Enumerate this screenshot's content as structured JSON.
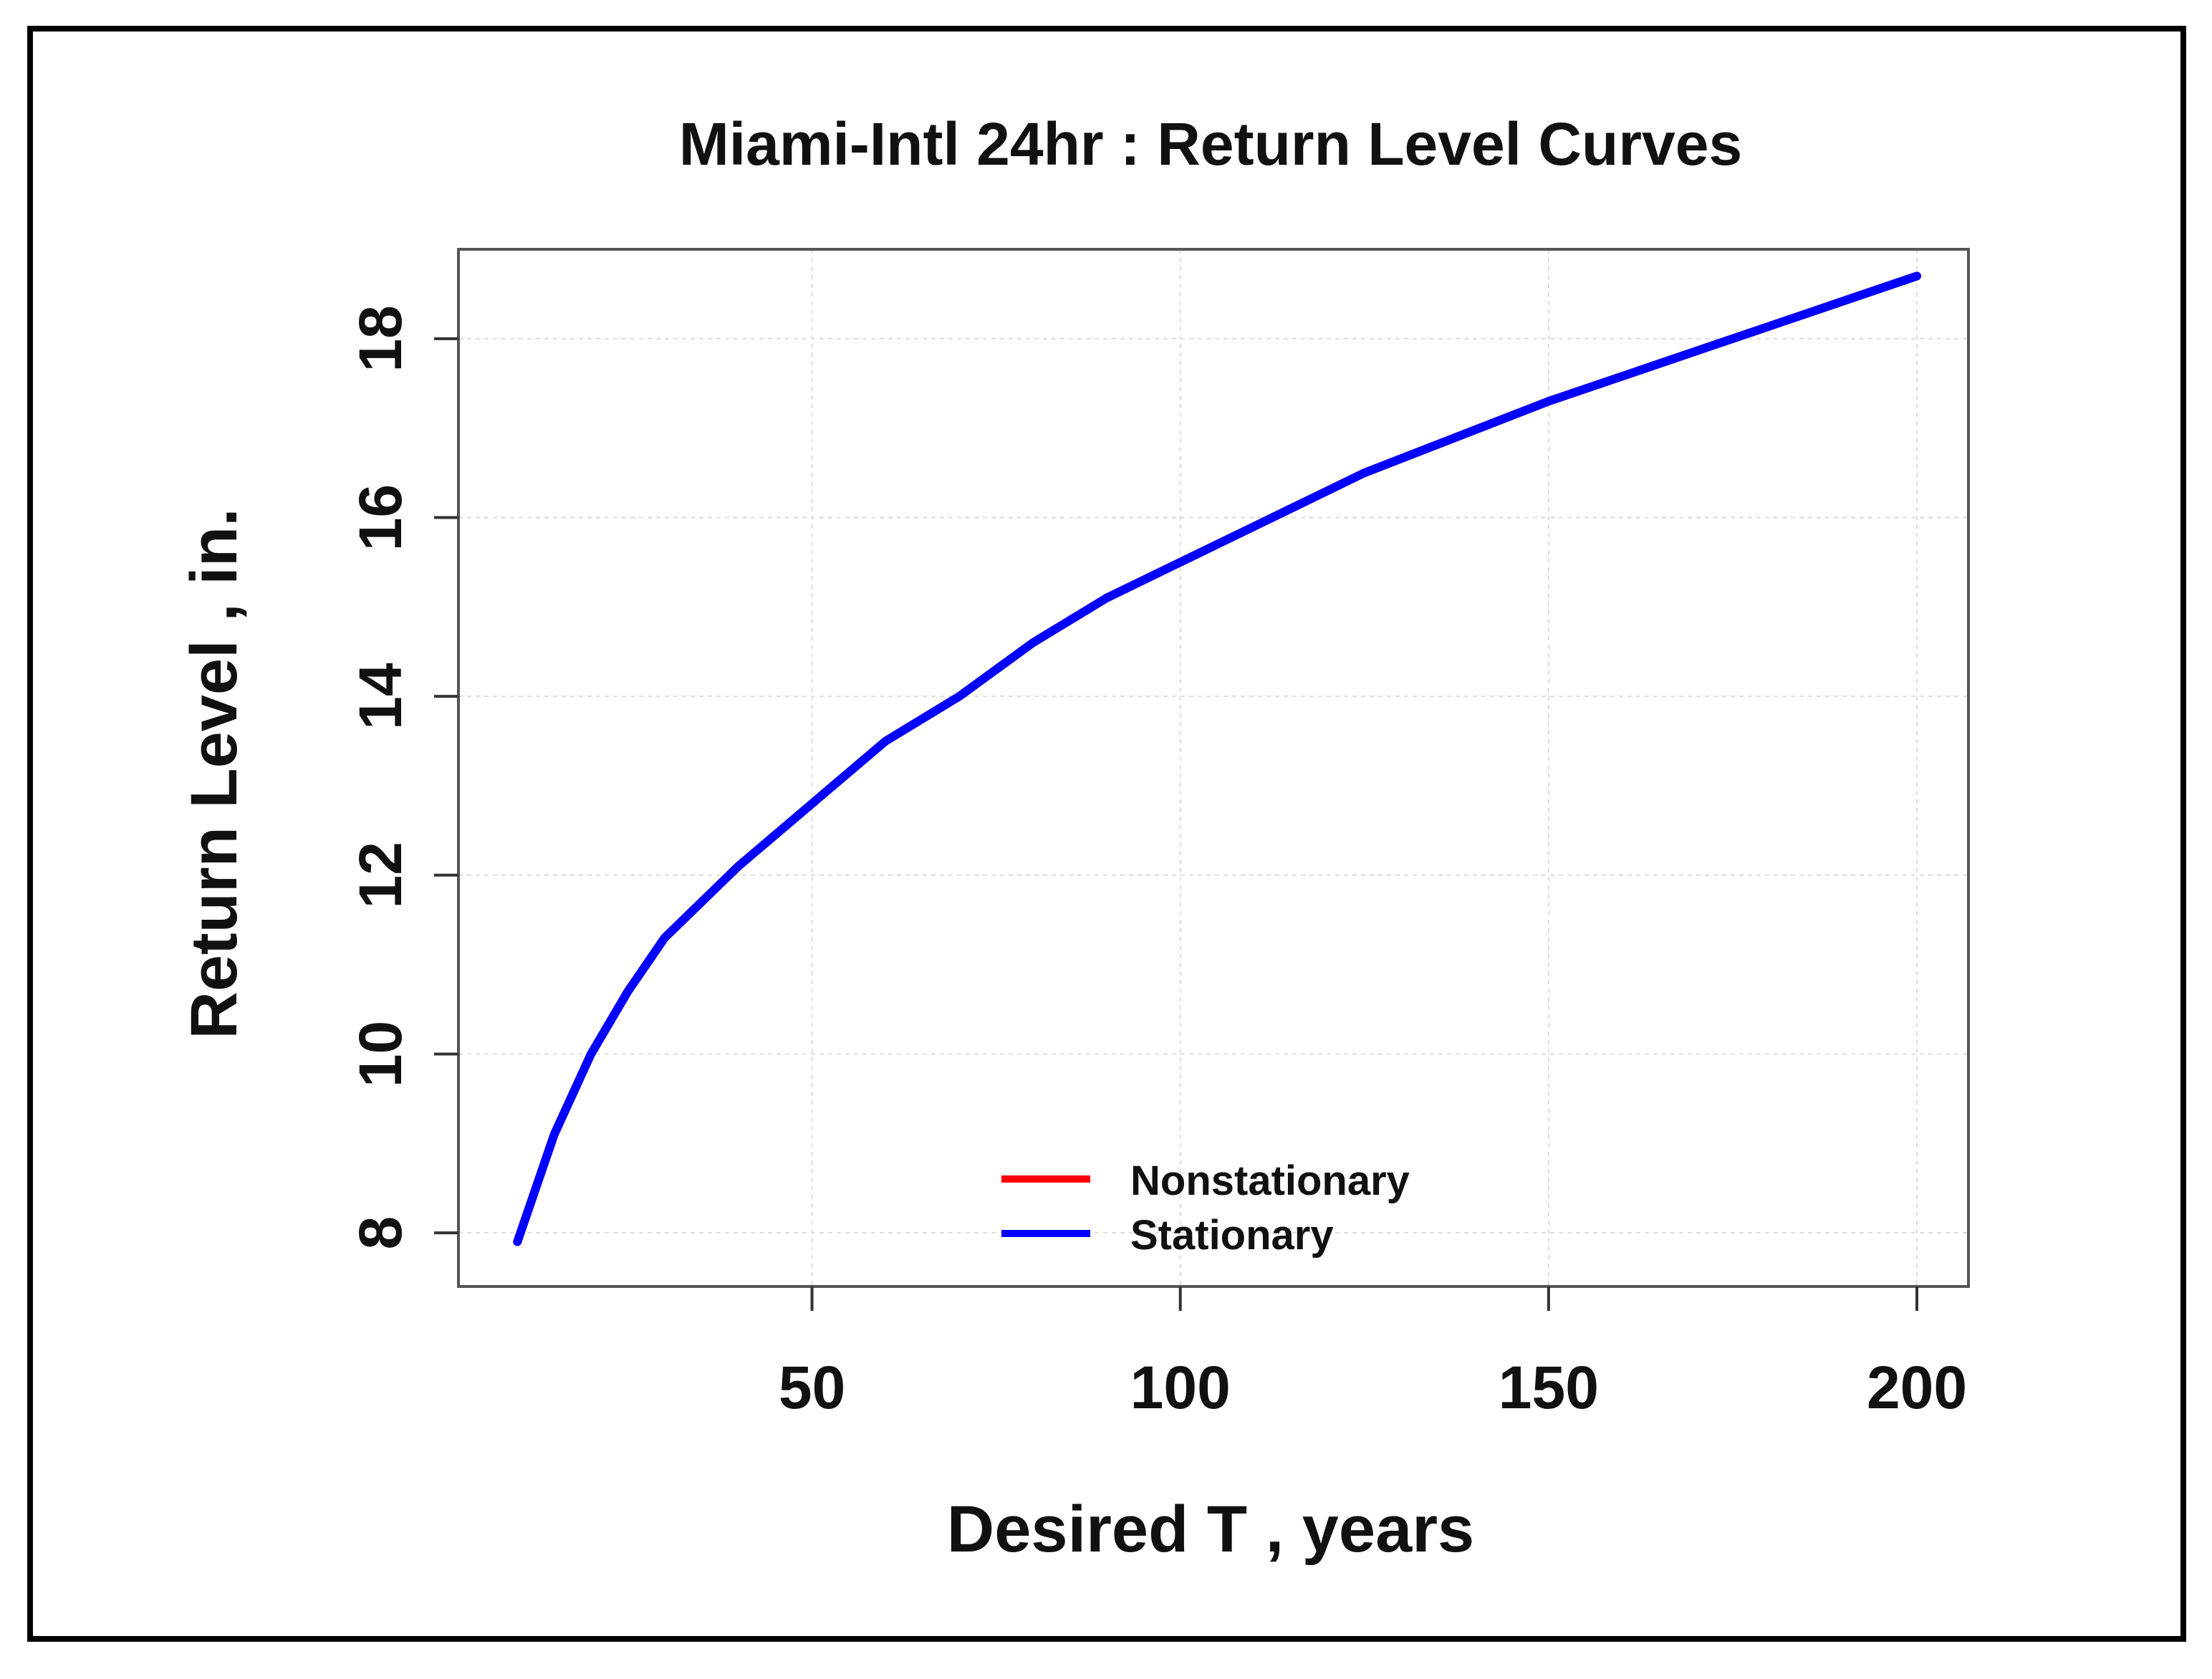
{
  "chart_data": {
    "type": "line",
    "title": "Miami-Intl 24hr : Return Level Curves",
    "xlabel": "Desired T , years",
    "ylabel": "Return Level , in.",
    "xlim": [
      2,
      207
    ],
    "ylim": [
      7.4,
      19.0
    ],
    "x_ticks": [
      50,
      100,
      150,
      200
    ],
    "y_ticks": [
      8,
      10,
      12,
      14,
      16,
      18
    ],
    "x_tick_labels": [
      "50",
      "100",
      "150",
      "200"
    ],
    "y_tick_labels": [
      "8",
      "10",
      "12",
      "14",
      "16",
      "18"
    ],
    "grid": true,
    "legend_position": "bottom-center",
    "x": [
      10,
      15,
      20,
      25,
      30,
      40,
      50,
      60,
      70,
      80,
      90,
      100,
      110,
      125,
      150,
      175,
      200
    ],
    "series": [
      {
        "name": "Nonstationary",
        "color": "#ff0000",
        "values": [
          7.9,
          9.1,
          10.0,
          10.7,
          11.3,
          12.1,
          12.8,
          13.5,
          14.0,
          14.6,
          15.1,
          15.5,
          15.9,
          16.5,
          17.3,
          18.0,
          18.7
        ]
      },
      {
        "name": "Stationary",
        "color": "#0000ff",
        "values": [
          7.9,
          9.1,
          10.0,
          10.7,
          11.3,
          12.1,
          12.8,
          13.5,
          14.0,
          14.6,
          15.1,
          15.5,
          15.9,
          16.5,
          17.3,
          18.0,
          18.7
        ]
      }
    ]
  }
}
